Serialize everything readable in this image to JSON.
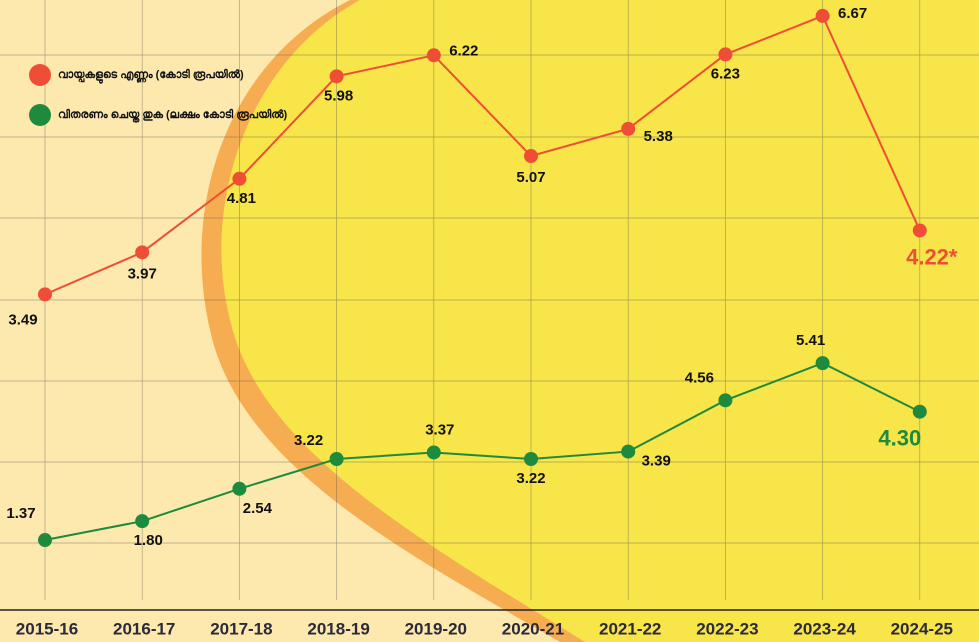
{
  "chart_data": {
    "type": "line",
    "categories": [
      "2015-16",
      "2016-17",
      "2017-18",
      "2018-19",
      "2019-20",
      "2020-21",
      "2021-22",
      "2022-23",
      "2023-24",
      "2024-25"
    ],
    "ylim": [
      0,
      7
    ],
    "y2lim": [
      0,
      14
    ],
    "series": [
      {
        "name": "വായ്പകളുടെ എണ്ണം (കോടി രൂപയിൽ)",
        "color": "#ef4e36",
        "values": [
          3.49,
          3.97,
          4.81,
          5.98,
          6.22,
          5.07,
          5.38,
          6.23,
          6.67,
          4.22
        ],
        "value_labels": [
          "3.49",
          "3.97",
          "4.81",
          "5.98",
          "6.22",
          "5.07",
          "5.38",
          "6.23",
          "6.67",
          "4.22*"
        ]
      },
      {
        "name": "വിതരണം ചെയ്ത തുക (ലക്ഷം കോടി രൂപയിൽ)",
        "color": "#1e8a3e",
        "axis": "y2",
        "values": [
          1.37,
          1.8,
          2.54,
          3.22,
          3.37,
          3.22,
          3.39,
          4.56,
          5.41,
          4.3
        ],
        "value_labels": [
          "1.37",
          "1.80",
          "2.54",
          "3.22",
          "3.37",
          "3.22",
          "3.39",
          "4.56",
          "5.41",
          "4.30"
        ]
      }
    ]
  }
}
